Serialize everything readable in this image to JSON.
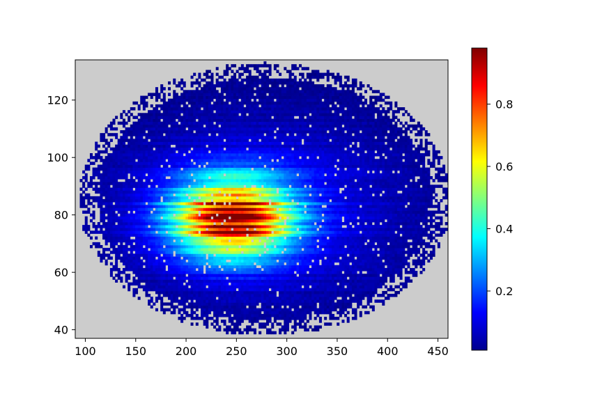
{
  "chart_data": {
    "type": "heatmap",
    "title": "",
    "xlabel": "",
    "ylabel": "",
    "xlim": [
      90,
      460
    ],
    "ylim": [
      37,
      134
    ],
    "x_ticks": [
      100,
      150,
      200,
      250,
      300,
      350,
      400,
      450
    ],
    "y_ticks": [
      40,
      60,
      80,
      100,
      120
    ],
    "background_color": "#cccccc",
    "colormap": "jet",
    "colorbar": {
      "range": [
        0.01,
        0.98
      ],
      "ticks": [
        0.2,
        0.4,
        0.6,
        0.8
      ]
    },
    "grid": false,
    "data_extent": {
      "x": [
        92,
        462
      ],
      "y": [
        38,
        133
      ]
    },
    "peak": {
      "x": 245,
      "y": 77,
      "value": 0.98
    },
    "structure": "horizontal streaky rows; elliptical high-density core centered near (245, 79)"
  }
}
